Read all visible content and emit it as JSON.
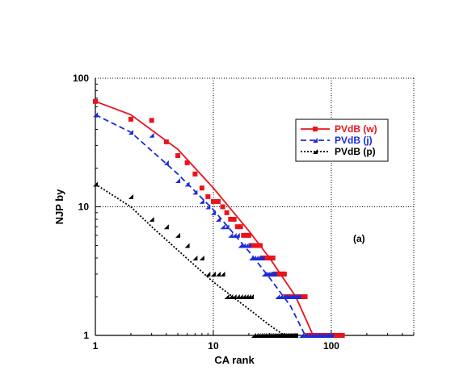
{
  "chart_data": {
    "type": "scatter",
    "xlabel": "CA rank",
    "ylabel": "NJP  by",
    "xscale": "log",
    "yscale": "log",
    "xlim": [
      1,
      500
    ],
    "ylim": [
      1,
      100
    ],
    "xticks": [
      1,
      10,
      100
    ],
    "yticks": [
      1,
      10,
      100
    ],
    "grid": "dotted at decades",
    "annotation": "(a)",
    "legend_position": "upper-right",
    "series": [
      {
        "name": "PVdB (w)",
        "color": "#e8141c",
        "marker": "square",
        "line_style": "solid",
        "points": [
          [
            1,
            66
          ],
          [
            2,
            48
          ],
          [
            3,
            47
          ],
          [
            4,
            32
          ],
          [
            5,
            25
          ],
          [
            6,
            22
          ],
          [
            7,
            18
          ],
          [
            8,
            14
          ],
          [
            9,
            12
          ],
          [
            10,
            11
          ],
          [
            11,
            11
          ],
          [
            12,
            10
          ],
          [
            13,
            9
          ],
          [
            14,
            8
          ],
          [
            15,
            8
          ],
          [
            16,
            7
          ],
          [
            17,
            7
          ],
          [
            18,
            6
          ],
          [
            19,
            6
          ],
          [
            20,
            6
          ],
          [
            21,
            5
          ],
          [
            22,
            5
          ],
          [
            23,
            5
          ],
          [
            24,
            5
          ],
          [
            25,
            5
          ],
          [
            26,
            4
          ],
          [
            27,
            4
          ],
          [
            28,
            4
          ],
          [
            29,
            4
          ],
          [
            30,
            4
          ],
          [
            31,
            4
          ],
          [
            32,
            4
          ],
          [
            33,
            3
          ],
          [
            34,
            3
          ],
          [
            35,
            3
          ],
          [
            36,
            3
          ],
          [
            37,
            3
          ],
          [
            38,
            3
          ],
          [
            39,
            3
          ],
          [
            40,
            3
          ],
          [
            41,
            2
          ],
          [
            43,
            2
          ],
          [
            45,
            2
          ],
          [
            47,
            2
          ],
          [
            49,
            2
          ],
          [
            51,
            2
          ],
          [
            53,
            2
          ],
          [
            55,
            2
          ],
          [
            57,
            2
          ],
          [
            60,
            2
          ],
          [
            64,
            1
          ],
          [
            70,
            1
          ],
          [
            76,
            1
          ],
          [
            82,
            1
          ],
          [
            88,
            1
          ],
          [
            94,
            1
          ],
          [
            100,
            1
          ],
          [
            106,
            1
          ],
          [
            112,
            1
          ],
          [
            118,
            1
          ],
          [
            124,
            1
          ]
        ],
        "fit": [
          [
            1,
            66
          ],
          [
            2,
            52
          ],
          [
            5,
            28
          ],
          [
            10,
            14
          ],
          [
            20,
            6.5
          ],
          [
            30,
            4
          ],
          [
            50,
            2
          ],
          [
            70,
            1
          ]
        ]
      },
      {
        "name": "PVdB (j)",
        "color": "#1a2bd9",
        "marker": "triangle",
        "line_style": "dashed",
        "points": [
          [
            1,
            52
          ],
          [
            2,
            38
          ],
          [
            3,
            36
          ],
          [
            4,
            22
          ],
          [
            5,
            16
          ],
          [
            6,
            15
          ],
          [
            7,
            13
          ],
          [
            8,
            11
          ],
          [
            9,
            10
          ],
          [
            10,
            9
          ],
          [
            11,
            8
          ],
          [
            12,
            7
          ],
          [
            13,
            7
          ],
          [
            14,
            6
          ],
          [
            15,
            6
          ],
          [
            16,
            6
          ],
          [
            17,
            5
          ],
          [
            18,
            5
          ],
          [
            19,
            5
          ],
          [
            20,
            5
          ],
          [
            21,
            4
          ],
          [
            22,
            4
          ],
          [
            23,
            4
          ],
          [
            24,
            4
          ],
          [
            25,
            4
          ],
          [
            26,
            4
          ],
          [
            27,
            3
          ],
          [
            28,
            3
          ],
          [
            29,
            3
          ],
          [
            30,
            3
          ],
          [
            31,
            3
          ],
          [
            32,
            3
          ],
          [
            33,
            3
          ],
          [
            35,
            2
          ],
          [
            37,
            2
          ],
          [
            39,
            2
          ],
          [
            41,
            2
          ],
          [
            43,
            2
          ],
          [
            45,
            2
          ],
          [
            47,
            2
          ],
          [
            49,
            2
          ],
          [
            51,
            2
          ],
          [
            53,
            2
          ],
          [
            56,
            1
          ],
          [
            60,
            1
          ],
          [
            64,
            1
          ],
          [
            68,
            1
          ],
          [
            72,
            1
          ],
          [
            76,
            1
          ],
          [
            80,
            1
          ],
          [
            84,
            1
          ],
          [
            88,
            1
          ],
          [
            92,
            1
          ],
          [
            96,
            1
          ],
          [
            100,
            1
          ]
        ],
        "fit": [
          [
            1,
            52
          ],
          [
            2,
            38
          ],
          [
            5,
            18
          ],
          [
            10,
            9.5
          ],
          [
            20,
            4.5
          ],
          [
            30,
            2.8
          ],
          [
            45,
            1.7
          ],
          [
            60,
            1
          ]
        ]
      },
      {
        "name": "PVdB (p)",
        "color": "#000000",
        "marker": "triangle",
        "line_style": "dotted",
        "points": [
          [
            1,
            15
          ],
          [
            2,
            12
          ],
          [
            3,
            8
          ],
          [
            4,
            7
          ],
          [
            5,
            6
          ],
          [
            6,
            5
          ],
          [
            7,
            4
          ],
          [
            8,
            4
          ],
          [
            9,
            3
          ],
          [
            10,
            3
          ],
          [
            11,
            3
          ],
          [
            12,
            3
          ],
          [
            13,
            2
          ],
          [
            14,
            2
          ],
          [
            15,
            2
          ],
          [
            16,
            2
          ],
          [
            17,
            2
          ],
          [
            18,
            2
          ],
          [
            19,
            2
          ],
          [
            20,
            2
          ],
          [
            21,
            2
          ],
          [
            22,
            1
          ],
          [
            23,
            1
          ],
          [
            24,
            1
          ],
          [
            25,
            1
          ],
          [
            26,
            1
          ],
          [
            27,
            1
          ],
          [
            28,
            1
          ],
          [
            29,
            1
          ],
          [
            30,
            1
          ],
          [
            31,
            1
          ],
          [
            32,
            1
          ],
          [
            33,
            1
          ],
          [
            34,
            1
          ],
          [
            35,
            1
          ],
          [
            36,
            1
          ],
          [
            37,
            1
          ],
          [
            38,
            1
          ],
          [
            39,
            1
          ],
          [
            40,
            1
          ],
          [
            41,
            1
          ],
          [
            42,
            1
          ],
          [
            43,
            1
          ],
          [
            44,
            1
          ],
          [
            45,
            1
          ],
          [
            46,
            1
          ],
          [
            47,
            1
          ],
          [
            48,
            1
          ],
          [
            49,
            1
          ],
          [
            50,
            1
          ]
        ],
        "fit": [
          [
            1,
            15
          ],
          [
            2,
            10
          ],
          [
            3,
            7
          ],
          [
            5,
            4.6
          ],
          [
            10,
            2.6
          ],
          [
            20,
            1.6
          ],
          [
            30,
            1.2
          ],
          [
            40,
            1
          ]
        ]
      }
    ]
  }
}
